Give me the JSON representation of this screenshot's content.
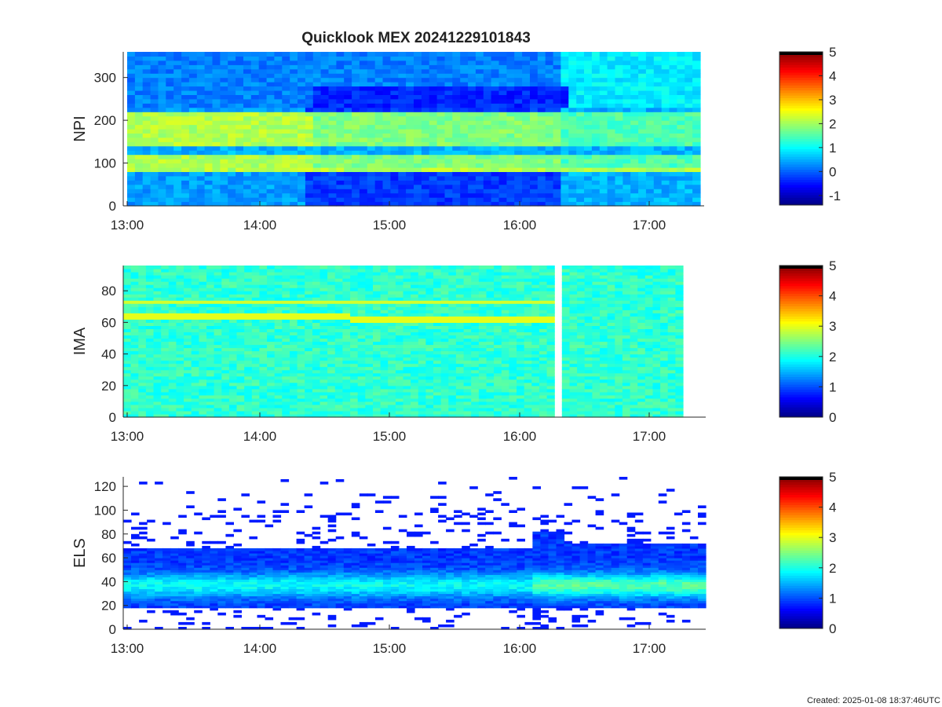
{
  "title": "Quicklook MEX 20241229101843",
  "footer": "Created: 2025-01-08 18:37:46UTC",
  "chart_data": [
    {
      "type": "heatmap",
      "ylabel": "NPI",
      "xticks": [
        "13:00",
        "14:00",
        "15:00",
        "16:00",
        "17:00"
      ],
      "yticks": [
        0,
        100,
        200,
        300
      ],
      "ylim": [
        0,
        360
      ],
      "colorbar": {
        "ticks": [
          -1,
          0,
          1,
          2,
          3,
          4,
          5
        ],
        "range": [
          -1.4,
          5
        ]
      }
    },
    {
      "type": "heatmap",
      "ylabel": "IMA",
      "xticks": [
        "13:00",
        "14:00",
        "15:00",
        "16:00",
        "17:00"
      ],
      "yticks": [
        0,
        20,
        40,
        60,
        80
      ],
      "ylim": [
        0,
        96
      ],
      "colorbar": {
        "ticks": [
          0,
          1,
          2,
          3,
          4,
          5
        ],
        "range": [
          0,
          5
        ]
      }
    },
    {
      "type": "heatmap",
      "ylabel": "ELS",
      "xticks": [
        "13:00",
        "14:00",
        "15:00",
        "16:00",
        "17:00"
      ],
      "yticks": [
        0,
        20,
        40,
        60,
        80,
        100,
        120
      ],
      "ylim": [
        0,
        128
      ],
      "colorbar": {
        "ticks": [
          0,
          1,
          2,
          3,
          4,
          5
        ],
        "range": [
          0,
          5
        ]
      }
    }
  ]
}
